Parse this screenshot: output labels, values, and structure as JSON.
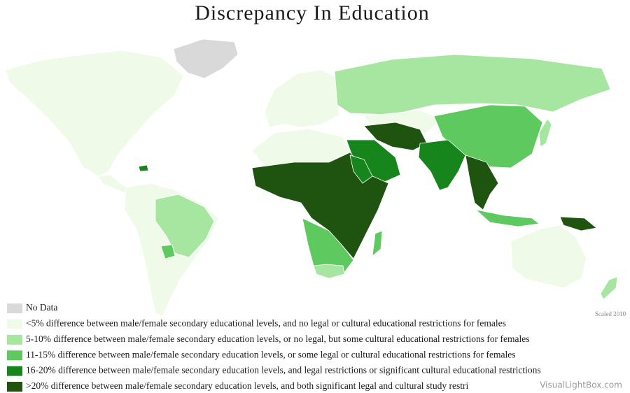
{
  "title": "Discrepancy In Education",
  "legend": [
    {
      "label": "No Data",
      "color": "#d9d9d9"
    },
    {
      "label": "<5% difference between male/female secondary educational levels, and no legal or cultural educational restrictions for females",
      "color": "#f0fae8"
    },
    {
      "label": "5-10% difference between male/female secondary education levels, or no legal, but some cultural educational restrictions for females",
      "color": "#a6e6a0"
    },
    {
      "label": "11-15% difference between male/female secondary education levels, or some legal or cultural educational restrictions for females",
      "color": "#5ec95e"
    },
    {
      "label": "16-20% difference between male/female secondary education levels, and legal restrictions or significant cultural educational restrictions",
      "color": "#16861c"
    },
    {
      "label": ">20% difference between male/female secondary education levels, and both significant legal and cultural study restri",
      "color": "#1e5410"
    }
  ],
  "credit": "Scaled 2010",
  "watermark": "VisualLightBox.com"
}
